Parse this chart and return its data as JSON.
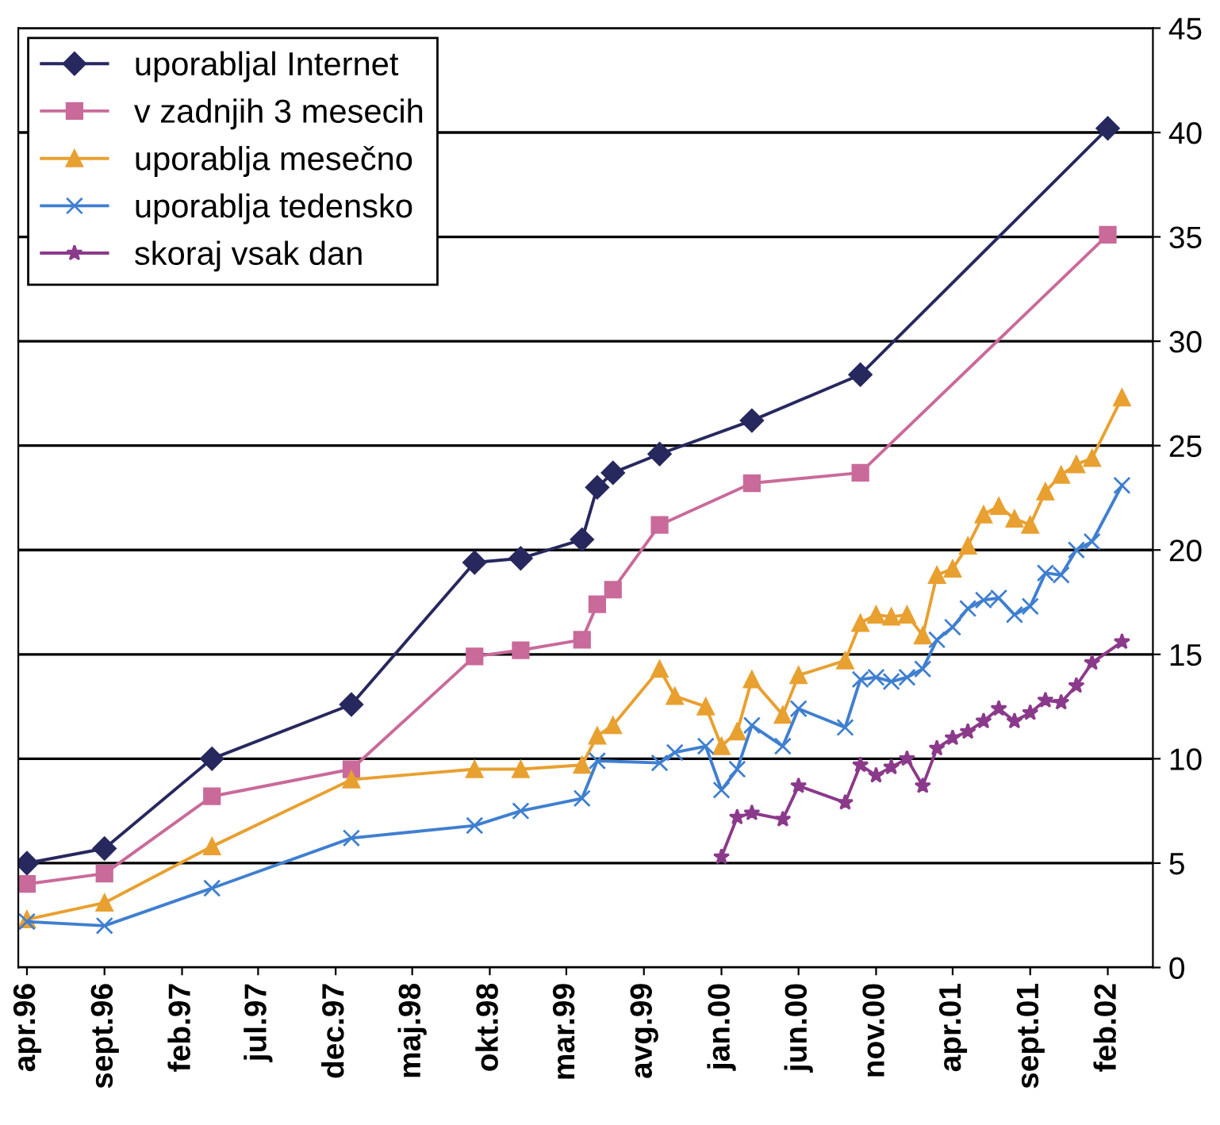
{
  "chart_data": {
    "type": "line",
    "legend": "top left",
    "grid": "y",
    "ylim": [
      0,
      45
    ],
    "yticks": [
      0,
      5,
      10,
      15,
      20,
      25,
      30,
      35,
      40,
      45
    ],
    "xlim": [
      "1996-03-15",
      "2002-05-01"
    ],
    "xticks": [
      {
        "value": "1996-04",
        "label": "apr.96"
      },
      {
        "value": "1996-09",
        "label": "sept.96"
      },
      {
        "value": "1997-02",
        "label": "feb.97"
      },
      {
        "value": "1997-07",
        "label": "jul.97"
      },
      {
        "value": "1997-12",
        "label": "dec.97"
      },
      {
        "value": "1998-05",
        "label": "maj.98"
      },
      {
        "value": "1998-10",
        "label": "okt.98"
      },
      {
        "value": "1999-03",
        "label": "mar.99"
      },
      {
        "value": "1999-08",
        "label": "avg.99"
      },
      {
        "value": "2000-01",
        "label": "jan.00"
      },
      {
        "value": "2000-06",
        "label": "jun.00"
      },
      {
        "value": "2000-11",
        "label": "nov.00"
      },
      {
        "value": "2001-04",
        "label": "apr.01"
      },
      {
        "value": "2001-09",
        "label": "sept.01"
      },
      {
        "value": "2002-02",
        "label": "feb.02"
      }
    ],
    "series": [
      {
        "name": "uporabljal Internet",
        "color": "#27285e",
        "marker": "diamond",
        "x": [
          "1996-04",
          "1996-09",
          "1997-04",
          "1998-01",
          "1998-09",
          "1998-12",
          "1999-04",
          "1999-05",
          "1999-06",
          "1999-09",
          "2000-03",
          "2000-10",
          "2002-02"
        ],
        "values": [
          5.0,
          5.7,
          10.0,
          12.6,
          19.4,
          19.6,
          20.5,
          23.0,
          23.7,
          24.6,
          26.2,
          28.4,
          40.2
        ]
      },
      {
        "name": "v zadnjih 3 mesecih",
        "color": "#c96a9a",
        "marker": "square",
        "x": [
          "1996-04",
          "1996-09",
          "1997-04",
          "1998-01",
          "1998-09",
          "1998-12",
          "1999-04",
          "1999-05",
          "1999-06",
          "1999-09",
          "2000-03",
          "2000-10",
          "2002-02"
        ],
        "values": [
          4.0,
          4.5,
          8.2,
          9.5,
          14.9,
          15.2,
          15.7,
          17.4,
          18.1,
          21.2,
          23.2,
          23.7,
          35.1
        ]
      },
      {
        "name": "uporablja mesečno",
        "color": "#e8a030",
        "marker": "triangle",
        "x": [
          "1996-04",
          "1996-09",
          "1997-04",
          "1998-01",
          "1998-09",
          "1998-12",
          "1999-04",
          "1999-05",
          "1999-06",
          "1999-09",
          "1999-10",
          "1999-12",
          "2000-01",
          "2000-02",
          "2000-03",
          "2000-05",
          "2000-06",
          "2000-09",
          "2000-10",
          "2000-11",
          "2000-12",
          "2001-01",
          "2001-02",
          "2001-03",
          "2001-04",
          "2001-05",
          "2001-06",
          "2001-07",
          "2001-08",
          "2001-09",
          "2001-10",
          "2001-11",
          "2001-12",
          "2002-01",
          "2002-03"
        ],
        "values": [
          2.3,
          3.1,
          5.8,
          9.0,
          9.5,
          9.5,
          9.7,
          11.1,
          11.6,
          14.3,
          13.0,
          12.5,
          10.6,
          11.3,
          13.8,
          12.1,
          14.0,
          14.7,
          16.5,
          16.9,
          16.8,
          16.9,
          15.9,
          18.8,
          19.1,
          20.2,
          21.7,
          22.1,
          21.5,
          21.2,
          22.8,
          23.6,
          24.1,
          24.4,
          27.3
        ]
      },
      {
        "name": "uporablja tedensko",
        "color": "#3f7fd0",
        "marker": "cross",
        "x": [
          "1996-04",
          "1996-09",
          "1997-04",
          "1998-01",
          "1998-09",
          "1998-12",
          "1999-04",
          "1999-05",
          "1999-09",
          "1999-10",
          "1999-12",
          "2000-01",
          "2000-02",
          "2000-03",
          "2000-05",
          "2000-06",
          "2000-09",
          "2000-10",
          "2000-11",
          "2000-12",
          "2001-01",
          "2001-02",
          "2001-03",
          "2001-04",
          "2001-05",
          "2001-06",
          "2001-07",
          "2001-08",
          "2001-09",
          "2001-10",
          "2001-11",
          "2001-12",
          "2002-01",
          "2002-03"
        ],
        "values": [
          2.2,
          2.0,
          3.8,
          6.2,
          6.8,
          7.5,
          8.1,
          9.9,
          9.8,
          10.3,
          10.6,
          8.5,
          9.5,
          11.6,
          10.6,
          12.4,
          11.5,
          13.8,
          13.9,
          13.7,
          13.9,
          14.3,
          15.7,
          16.3,
          17.2,
          17.6,
          17.7,
          16.9,
          17.3,
          18.9,
          18.8,
          20.0,
          20.4,
          23.1
        ]
      },
      {
        "name": "skoraj vsak dan",
        "color": "#8b3a8b",
        "marker": "star",
        "x": [
          "2000-01",
          "2000-02",
          "2000-03",
          "2000-05",
          "2000-06",
          "2000-09",
          "2000-10",
          "2000-11",
          "2000-12",
          "2001-01",
          "2001-02",
          "2001-03",
          "2001-04",
          "2001-05",
          "2001-06",
          "2001-07",
          "2001-08",
          "2001-09",
          "2001-10",
          "2001-11",
          "2001-12",
          "2002-01",
          "2002-03"
        ],
        "values": [
          5.3,
          7.2,
          7.4,
          7.1,
          8.7,
          7.9,
          9.7,
          9.2,
          9.6,
          10.0,
          8.7,
          10.5,
          11.0,
          11.3,
          11.8,
          12.4,
          11.8,
          12.2,
          12.8,
          12.7,
          13.5,
          14.6,
          15.6
        ]
      }
    ]
  }
}
